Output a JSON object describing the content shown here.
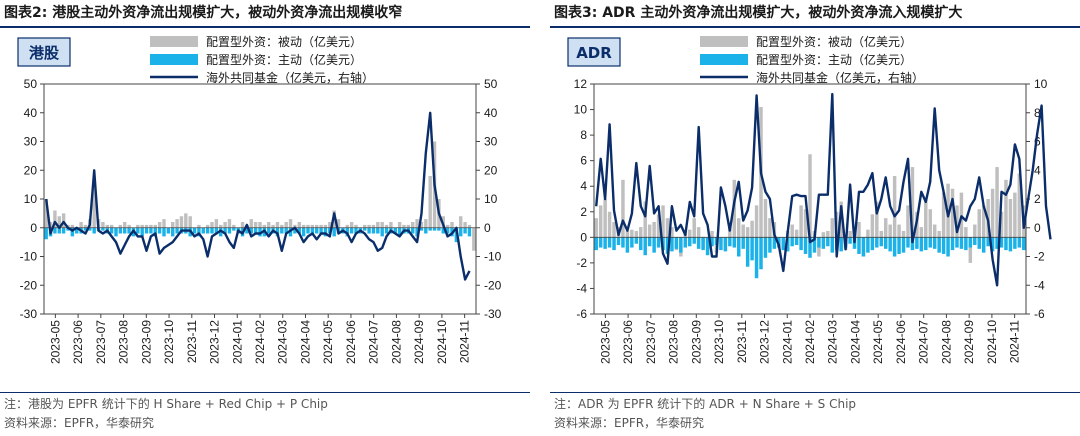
{
  "panels": [
    {
      "title": "图表2:  港股主动外资净流出规模扩大，被动外资净流出规模收窄",
      "tag": "港股",
      "legend": [
        "配置型外资：被动（亿美元）",
        "配置型外资：主动（亿美元）",
        "海外共同基金（亿美元，右轴）"
      ],
      "note": "注：港股为 EPFR 统计下的 H Share + Red Chip + P Chip",
      "source": "资料来源：EPFR，华泰研究"
    },
    {
      "title": "图表3:  ADR 主动外资净流出规模扩大，被动外资净流入规模扩大",
      "tag": "ADR",
      "legend": [
        "配置型外资：被动（亿美元）",
        "配置型外资：主动（亿美元）",
        "海外共同基金（亿美元，右轴）"
      ],
      "note": "注：ADR 为 EPFR 统计下的 ADR + N Share + S Chip",
      "source": "资料来源：EPFR，华泰研究"
    }
  ],
  "colors": {
    "passive": "#bfbfbf",
    "active": "#1ab2e8",
    "line": "#0b2e6b"
  },
  "chart_data": [
    {
      "type": "bar",
      "title": "港股主动外资净流出规模扩大，被动外资净流出规模收窄",
      "x_tick_labels": [
        "2023-05",
        "2023-06",
        "2023-07",
        "2023-08",
        "2023-09",
        "2023-10",
        "2023-11",
        "2023-12",
        "2024-01",
        "2024-02",
        "2024-03",
        "2024-04",
        "2024-05",
        "2024-06",
        "2024-07",
        "2024-08",
        "2024-09",
        "2024-10",
        "2024-11"
      ],
      "ylim_left": [
        -30,
        50
      ],
      "ylim_right": [
        -30,
        50
      ],
      "yticks_left": [
        50,
        40,
        30,
        20,
        10,
        0,
        -10,
        -20,
        -30
      ],
      "yticks_right": [
        50,
        40,
        30,
        20,
        10,
        0,
        -10,
        -20,
        -30
      ],
      "legend_position": "top-center",
      "series": [
        {
          "name": "配置型外资：被动（亿美元）",
          "type": "bar",
          "axis": "left",
          "values": [
            10,
            2,
            6,
            4,
            5,
            1,
            1,
            -1,
            2,
            1,
            3,
            17,
            3,
            2,
            1,
            1,
            -1,
            1,
            2,
            1,
            -2,
            1,
            1,
            1,
            1,
            1,
            2,
            3,
            -1,
            2,
            3,
            4,
            5,
            4,
            -1,
            1,
            0,
            1,
            2,
            3,
            1,
            2,
            3,
            1,
            -1,
            2,
            1,
            3,
            2,
            2,
            1,
            2,
            1,
            2,
            1,
            2,
            3,
            1,
            2,
            1,
            1,
            1,
            1,
            1,
            1,
            2,
            6,
            3,
            -2,
            1,
            2,
            1,
            -1,
            1,
            1,
            1,
            2,
            2,
            1,
            2,
            -1,
            2,
            1,
            1,
            2,
            3,
            2,
            3,
            18,
            30,
            10,
            4,
            1,
            2,
            -1,
            4,
            2,
            1,
            -8
          ]
        },
        {
          "name": "配置型外资：主动（亿美元）",
          "type": "bar",
          "axis": "left",
          "values": [
            -4,
            -3,
            -2,
            -2,
            -2,
            -1,
            -3,
            -2,
            -2,
            -1,
            -1,
            -2,
            -1,
            -1,
            -2,
            -2,
            -3,
            -2,
            -2,
            -2,
            -3,
            -2,
            -3,
            -2,
            -2,
            -3,
            -2,
            -3,
            -2,
            -3,
            -2,
            -2,
            -2,
            -3,
            -2,
            -3,
            -2,
            -2,
            -2,
            -2,
            -3,
            -2,
            -2,
            -1,
            -2,
            -3,
            -2,
            -2,
            -2,
            -3,
            -3,
            -2,
            -2,
            -3,
            -2,
            -2,
            -3,
            -2,
            -2,
            -3,
            -2,
            -2,
            -2,
            -2,
            -3,
            -2,
            -3,
            -2,
            -2,
            -3,
            -2,
            -2,
            -2,
            -1,
            -2,
            -2,
            -2,
            -3,
            -2,
            -2,
            -2,
            -3,
            -2,
            -2,
            -2,
            -3,
            -1,
            -2,
            -1,
            -1,
            -1,
            -2,
            -2,
            -3,
            -5,
            -3,
            -2,
            -3
          ]
        },
        {
          "name": "海外共同基金（亿美元，右轴）",
          "type": "line",
          "axis": "right",
          "values": [
            10,
            -2,
            2,
            0,
            2,
            0,
            -1,
            0,
            -1,
            -2,
            1,
            20,
            -1,
            -2,
            -1,
            -3,
            -5,
            -9,
            -6,
            -3,
            -1,
            -3,
            -3,
            -8,
            -3,
            -2,
            -9,
            -7,
            -6,
            -5,
            -3,
            -1,
            -1,
            -1,
            -3,
            -2,
            -4,
            -10,
            -3,
            -2,
            -1,
            -2,
            -5,
            -7,
            -1,
            -2,
            1,
            -3,
            -2,
            -2,
            -1,
            -3,
            -1,
            -2,
            -8,
            -2,
            -1,
            0,
            -2,
            -5,
            -3,
            -2,
            -4,
            -2,
            -2,
            -3,
            5,
            -2,
            -1,
            -2,
            -5,
            -2,
            -1,
            -2,
            -4,
            -5,
            -8,
            -7,
            -3,
            -1,
            -2,
            -3,
            -1,
            -1,
            -3,
            -5,
            5,
            26,
            40,
            15,
            5,
            1,
            -3,
            -2,
            0,
            -10,
            -18,
            -15
          ]
        }
      ]
    },
    {
      "type": "bar",
      "title": "ADR 主动外资净流出规模扩大，被动外资净流入规模扩大",
      "x_tick_labels": [
        "2023-05",
        "2023-06",
        "2023-07",
        "2023-08",
        "2023-09",
        "2023-10",
        "2023-11",
        "2023-12",
        "2024-01",
        "2024-02",
        "2024-03",
        "2024-04",
        "2024-05",
        "2024-06",
        "2024-07",
        "2024-08",
        "2024-09",
        "2024-10",
        "2024-11"
      ],
      "ylim_left": [
        -6,
        12
      ],
      "ylim_right": [
        -6,
        10
      ],
      "yticks_left": [
        12,
        10,
        8,
        6,
        4,
        2,
        0,
        -2,
        -4,
        -6
      ],
      "yticks_right": [
        10,
        8,
        6,
        4,
        2,
        0,
        -2,
        -4,
        -6
      ],
      "legend_position": "top-center",
      "series": [
        {
          "name": "配置型外资：被动（亿美元）",
          "type": "bar",
          "axis": "left",
          "values": [
            1.5,
            2.5,
            3,
            2,
            1.2,
            0.8,
            4.5,
            0.5,
            0.6,
            0.5,
            0.8,
            2.8,
            1,
            1.2,
            1.8,
            2.5,
            1.5,
            0.8,
            -1,
            -1.5,
            0.5,
            0.6,
            1.5,
            0.8,
            -0.8,
            -0.5,
            0.5,
            -1.2,
            -0.5,
            -1,
            0.8,
            4.5,
            1.5,
            1,
            0.8,
            1.3,
            2.5,
            10.2,
            3,
            1.5,
            1.2,
            -0.8,
            -1,
            0.5,
            1,
            0.6,
            2.5,
            2.2,
            6.5,
            0.5,
            -1.5,
            0.4,
            0.5,
            1.5,
            2,
            2.8,
            -1,
            0.5,
            0.8,
            1.2,
            -1.5,
            0.6,
            1.8,
            2.8,
            0.5,
            1.5,
            1,
            4.8,
            1,
            0.5,
            2.5,
            5.5,
            2,
            0.8,
            3,
            2.2,
            1,
            0.5,
            3.5,
            4.2,
            3.8,
            2.5,
            3.5,
            0.8,
            -2,
            1,
            2.2,
            2.5,
            3,
            3.8,
            5.5,
            2,
            4.5,
            3,
            3.5,
            5,
            2.5
          ]
        },
        {
          "name": "配置型外资：主动（亿美元）",
          "type": "bar",
          "axis": "left",
          "values": [
            -1,
            -0.8,
            -0.9,
            -0.8,
            -1,
            -0.6,
            -0.8,
            -1.2,
            -0.8,
            -0.5,
            -1,
            -1.4,
            -0.7,
            -1.2,
            -0.8,
            -1,
            -1.3,
            -1.1,
            -0.9,
            -1.2,
            -0.8,
            -0.7,
            -0.5,
            -0.9,
            -1,
            -1.4,
            -0.7,
            -0.6,
            -1,
            -1.1,
            -0.7,
            -0.8,
            -1.5,
            -0.9,
            -2.3,
            -1.8,
            -3.2,
            -2.5,
            -1.6,
            -1.2,
            -0.9,
            -0.8,
            -1,
            -1.1,
            -0.7,
            -0.6,
            -1,
            -1.3,
            -1.6,
            -1.2,
            -0.8,
            -0.9,
            -0.7,
            -1.2,
            -1,
            -1.1,
            -0.8,
            -0.5,
            -0.9,
            -1.3,
            -1.5,
            -1.2,
            -1,
            -0.8,
            -0.7,
            -0.9,
            -1.1,
            -1.5,
            -1.3,
            -1.2,
            -0.8,
            -1,
            -0.9,
            -1.1,
            -1,
            -0.8,
            -0.9,
            -1.2,
            -1.3,
            -1.5,
            -1,
            -0.8,
            -0.9,
            -1,
            -0.8,
            -0.6,
            -0.9,
            -1.2,
            -0.7,
            -1.1,
            -0.9,
            -0.8,
            -1,
            -1.1,
            -0.9,
            -0.8,
            -1
          ]
        },
        {
          "name": "海外共同基金（亿美元，右轴）",
          "type": "line",
          "axis": "right",
          "values": [
            1.5,
            4.8,
            2,
            7.2,
            1.2,
            -0.5,
            0.5,
            -0.2,
            1,
            4.5,
            1.5,
            0.8,
            4.3,
            1,
            1.5,
            -1.8,
            -2.5,
            1.5,
            -0.2,
            0.2,
            -0.5,
            1.8,
            0.8,
            7,
            1,
            0.2,
            -2,
            -2,
            2.8,
            1.5,
            -0.2,
            1.8,
            3.2,
            0.5,
            1.2,
            2.8,
            9.2,
            3.8,
            2.5,
            2,
            -0.5,
            -1.2,
            -3,
            -0.3,
            2.2,
            2.3,
            2.2,
            2.2,
            -1,
            -0.8,
            2.3,
            2.3,
            2.3,
            9.3,
            -2,
            1.5,
            -1.5,
            3,
            -1,
            2.5,
            2.5,
            3,
            3.8,
            1,
            2,
            3.5,
            1.5,
            0.8,
            1.2,
            3.2,
            4.8,
            -1,
            0.5,
            2.5,
            1.8,
            3.2,
            8.3,
            4,
            2.5,
            0.8,
            2,
            -0.3,
            0.8,
            0.5,
            1.5,
            2,
            3.5,
            1.5,
            0.5,
            -2.2,
            -4,
            2.5,
            2.3,
            3,
            5.8,
            4.8,
            0,
            2,
            4,
            6.5,
            8.5,
            1.5,
            -0.8
          ]
        }
      ]
    }
  ]
}
